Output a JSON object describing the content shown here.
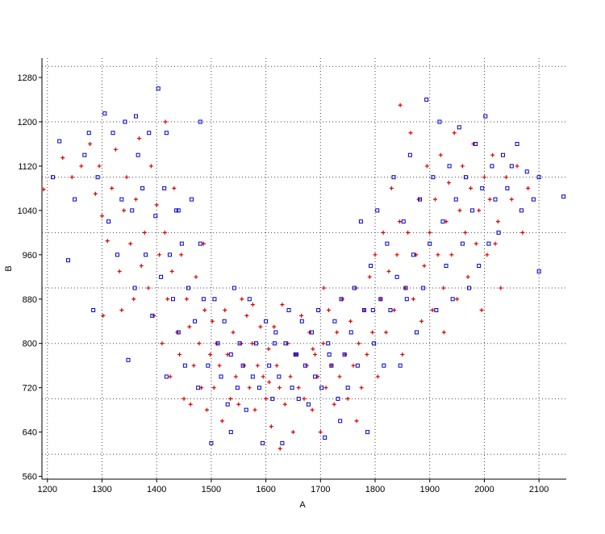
{
  "chart_data": {
    "type": "scatter",
    "title": "",
    "xlabel": "A",
    "ylabel": "B",
    "xlim": [
      1190,
      2150
    ],
    "ylim": [
      555,
      1315
    ],
    "x_ticks": [
      1200,
      1300,
      1400,
      1500,
      1600,
      1700,
      1800,
      1900,
      2000,
      2100
    ],
    "y_ticks": [
      560,
      640,
      720,
      800,
      880,
      960,
      1040,
      1120,
      1200,
      1280
    ],
    "x_grid": [
      1200,
      1300,
      1400,
      1500,
      1600,
      1700,
      1800,
      1900,
      2000,
      2100
    ],
    "y_grid": [
      600,
      700,
      800,
      900,
      1000,
      1100,
      1200,
      1300
    ],
    "grid": true,
    "legend": "none",
    "series": [
      {
        "marker": "plus",
        "color": "#dd0000",
        "points": [
          [
            1193,
            1078
          ],
          [
            1228,
            1135
          ],
          [
            1245,
            1100
          ],
          [
            1262,
            1120
          ],
          [
            1278,
            1160
          ],
          [
            1288,
            1070
          ],
          [
            1295,
            1120
          ],
          [
            1300,
            1030
          ],
          [
            1302,
            850
          ],
          [
            1310,
            985
          ],
          [
            1318,
            1080
          ],
          [
            1325,
            1150
          ],
          [
            1332,
            930
          ],
          [
            1340,
            1040
          ],
          [
            1345,
            1100
          ],
          [
            1352,
            980
          ],
          [
            1358,
            880
          ],
          [
            1362,
            1060
          ],
          [
            1368,
            1170
          ],
          [
            1372,
            940
          ],
          [
            1378,
            1000
          ],
          [
            1385,
            900
          ],
          [
            1390,
            1120
          ],
          [
            1395,
            850
          ],
          [
            1400,
            1050
          ],
          [
            1405,
            960
          ],
          [
            1410,
            800
          ],
          [
            1415,
            1000
          ],
          [
            1420,
            880
          ],
          [
            1425,
            740
          ],
          [
            1428,
            930
          ],
          [
            1432,
            1080
          ],
          [
            1438,
            820
          ],
          [
            1442,
            780
          ],
          [
            1445,
            960
          ],
          [
            1450,
            700
          ],
          [
            1455,
            880
          ],
          [
            1460,
            830
          ],
          [
            1462,
            690
          ],
          [
            1468,
            760
          ],
          [
            1472,
            920
          ],
          [
            1478,
            800
          ],
          [
            1482,
            720
          ],
          [
            1488,
            860
          ],
          [
            1492,
            680
          ],
          [
            1498,
            780
          ],
          [
            1502,
            840
          ],
          [
            1505,
            720
          ],
          [
            1510,
            800
          ],
          [
            1515,
            760
          ],
          [
            1520,
            660
          ],
          [
            1525,
            860
          ],
          [
            1530,
            780
          ],
          [
            1535,
            700
          ],
          [
            1540,
            820
          ],
          [
            1545,
            740
          ],
          [
            1550,
            690
          ],
          [
            1555,
            800
          ],
          [
            1560,
            760
          ],
          [
            1565,
            850
          ],
          [
            1570,
            720
          ],
          [
            1575,
            800
          ],
          [
            1580,
            680
          ],
          [
            1585,
            760
          ],
          [
            1590,
            830
          ],
          [
            1595,
            740
          ],
          [
            1600,
            700
          ],
          [
            1605,
            790
          ],
          [
            1610,
            650
          ],
          [
            1615,
            830
          ],
          [
            1620,
            760
          ],
          [
            1625,
            720
          ],
          [
            1630,
            870
          ],
          [
            1635,
            690
          ],
          [
            1640,
            800
          ],
          [
            1645,
            740
          ],
          [
            1650,
            640
          ],
          [
            1655,
            780
          ],
          [
            1660,
            720
          ],
          [
            1665,
            850
          ],
          [
            1670,
            700
          ],
          [
            1675,
            760
          ],
          [
            1680,
            820
          ],
          [
            1685,
            680
          ],
          [
            1690,
            780
          ],
          [
            1695,
            740
          ],
          [
            1700,
            640
          ],
          [
            1705,
            800
          ],
          [
            1710,
            720
          ],
          [
            1715,
            860
          ],
          [
            1720,
            760
          ],
          [
            1725,
            690
          ],
          [
            1730,
            820
          ],
          [
            1735,
            740
          ],
          [
            1740,
            880
          ],
          [
            1745,
            780
          ],
          [
            1750,
            700
          ],
          [
            1755,
            840
          ],
          [
            1760,
            760
          ],
          [
            1765,
            900
          ],
          [
            1770,
            800
          ],
          [
            1775,
            720
          ],
          [
            1780,
            860
          ],
          [
            1785,
            780
          ],
          [
            1790,
            920
          ],
          [
            1795,
            820
          ],
          [
            1800,
            960
          ],
          [
            1805,
            740
          ],
          [
            1810,
            880
          ],
          [
            1815,
            1000
          ],
          [
            1820,
            820
          ],
          [
            1825,
            930
          ],
          [
            1830,
            1080
          ],
          [
            1835,
            860
          ],
          [
            1840,
            960
          ],
          [
            1845,
            1020
          ],
          [
            1850,
            780
          ],
          [
            1855,
            900
          ],
          [
            1860,
            1000
          ],
          [
            1865,
            1180
          ],
          [
            1870,
            880
          ],
          [
            1875,
            960
          ],
          [
            1880,
            1060
          ],
          [
            1885,
            840
          ],
          [
            1890,
            940
          ],
          [
            1895,
            1120
          ],
          [
            1900,
            1000
          ],
          [
            1905,
            860
          ],
          [
            1910,
            1060
          ],
          [
            1915,
            960
          ],
          [
            1920,
            1140
          ],
          [
            1925,
            900
          ],
          [
            1930,
            1020
          ],
          [
            1935,
            1090
          ],
          [
            1940,
            960
          ],
          [
            1945,
            1180
          ],
          [
            1950,
            880
          ],
          [
            1955,
            1040
          ],
          [
            1960,
            1120
          ],
          [
            1965,
            1000
          ],
          [
            1970,
            920
          ],
          [
            1975,
            1080
          ],
          [
            1980,
            1160
          ],
          [
            1985,
            980
          ],
          [
            1990,
            1040
          ],
          [
            1995,
            860
          ],
          [
            2000,
            1100
          ],
          [
            2005,
            960
          ],
          [
            2010,
            1060
          ],
          [
            2015,
            1140
          ],
          [
            2020,
            980
          ],
          [
            2025,
            1020
          ],
          [
            2030,
            900
          ],
          [
            2040,
            1100
          ],
          [
            2050,
            1060
          ],
          [
            2060,
            1120
          ],
          [
            2070,
            1000
          ],
          [
            2080,
            1080
          ],
          [
            1336,
            860
          ],
          [
            1416,
            1200
          ],
          [
            1486,
            980
          ],
          [
            1556,
            880
          ],
          [
            1626,
            610
          ],
          [
            1706,
            900
          ],
          [
            1766,
            660
          ],
          [
            1846,
            1230
          ],
          [
            1926,
            820
          ],
          [
            1606,
            730
          ],
          [
            1686,
            790
          ],
          [
            1576,
            870
          ]
        ]
      },
      {
        "marker": "square",
        "color": "#0000cc",
        "points": [
          [
            1210,
            1100
          ],
          [
            1222,
            1165
          ],
          [
            1238,
            950
          ],
          [
            1250,
            1060
          ],
          [
            1268,
            1140
          ],
          [
            1276,
            1180
          ],
          [
            1284,
            860
          ],
          [
            1292,
            1100
          ],
          [
            1305,
            1215
          ],
          [
            1312,
            1020
          ],
          [
            1320,
            1180
          ],
          [
            1328,
            960
          ],
          [
            1336,
            1060
          ],
          [
            1342,
            1200
          ],
          [
            1348,
            770
          ],
          [
            1355,
            1040
          ],
          [
            1360,
            900
          ],
          [
            1366,
            1140
          ],
          [
            1374,
            1080
          ],
          [
            1380,
            960
          ],
          [
            1386,
            1180
          ],
          [
            1392,
            850
          ],
          [
            1398,
            1030
          ],
          [
            1403,
            1260
          ],
          [
            1408,
            920
          ],
          [
            1414,
            1080
          ],
          [
            1418,
            740
          ],
          [
            1424,
            960
          ],
          [
            1430,
            880
          ],
          [
            1436,
            1040
          ],
          [
            1440,
            820
          ],
          [
            1446,
            980
          ],
          [
            1452,
            760
          ],
          [
            1458,
            900
          ],
          [
            1464,
            1060
          ],
          [
            1470,
            840
          ],
          [
            1476,
            720
          ],
          [
            1480,
            980
          ],
          [
            1486,
            880
          ],
          [
            1494,
            760
          ],
          [
            1500,
            620
          ],
          [
            1506,
            880
          ],
          [
            1512,
            800
          ],
          [
            1518,
            740
          ],
          [
            1524,
            840
          ],
          [
            1530,
            690
          ],
          [
            1536,
            780
          ],
          [
            1542,
            900
          ],
          [
            1548,
            720
          ],
          [
            1552,
            800
          ],
          [
            1558,
            760
          ],
          [
            1564,
            680
          ],
          [
            1570,
            880
          ],
          [
            1576,
            740
          ],
          [
            1582,
            800
          ],
          [
            1588,
            720
          ],
          [
            1594,
            620
          ],
          [
            1600,
            840
          ],
          [
            1606,
            760
          ],
          [
            1612,
            700
          ],
          [
            1618,
            820
          ],
          [
            1624,
            740
          ],
          [
            1630,
            620
          ],
          [
            1636,
            800
          ],
          [
            1642,
            860
          ],
          [
            1648,
            720
          ],
          [
            1654,
            780
          ],
          [
            1660,
            700
          ],
          [
            1666,
            840
          ],
          [
            1672,
            760
          ],
          [
            1678,
            690
          ],
          [
            1684,
            820
          ],
          [
            1690,
            740
          ],
          [
            1696,
            860
          ],
          [
            1702,
            720
          ],
          [
            1708,
            630
          ],
          [
            1714,
            800
          ],
          [
            1720,
            760
          ],
          [
            1726,
            840
          ],
          [
            1732,
            700
          ],
          [
            1738,
            880
          ],
          [
            1744,
            780
          ],
          [
            1750,
            720
          ],
          [
            1756,
            820
          ],
          [
            1762,
            900
          ],
          [
            1768,
            760
          ],
          [
            1774,
            1020
          ],
          [
            1780,
            860
          ],
          [
            1786,
            640
          ],
          [
            1792,
            940
          ],
          [
            1798,
            800
          ],
          [
            1804,
            1040
          ],
          [
            1810,
            880
          ],
          [
            1816,
            760
          ],
          [
            1822,
            980
          ],
          [
            1828,
            860
          ],
          [
            1834,
            1100
          ],
          [
            1840,
            920
          ],
          [
            1846,
            760
          ],
          [
            1852,
            1020
          ],
          [
            1858,
            880
          ],
          [
            1864,
            1140
          ],
          [
            1870,
            960
          ],
          [
            1876,
            820
          ],
          [
            1882,
            1060
          ],
          [
            1888,
            900
          ],
          [
            1894,
            1240
          ],
          [
            1900,
            980
          ],
          [
            1906,
            1100
          ],
          [
            1912,
            860
          ],
          [
            1918,
            1200
          ],
          [
            1924,
            1020
          ],
          [
            1930,
            940
          ],
          [
            1936,
            1120
          ],
          [
            1942,
            880
          ],
          [
            1948,
            1060
          ],
          [
            1954,
            1190
          ],
          [
            1960,
            980
          ],
          [
            1966,
            1100
          ],
          [
            1972,
            900
          ],
          [
            1978,
            1040
          ],
          [
            1984,
            1160
          ],
          [
            1990,
            940
          ],
          [
            1996,
            1080
          ],
          [
            2002,
            1210
          ],
          [
            2008,
            980
          ],
          [
            2014,
            1120
          ],
          [
            2020,
            1060
          ],
          [
            2026,
            1000
          ],
          [
            2034,
            1140
          ],
          [
            2042,
            1080
          ],
          [
            2050,
            1120
          ],
          [
            2060,
            1160
          ],
          [
            2068,
            1040
          ],
          [
            2078,
            1110
          ],
          [
            2090,
            1060
          ],
          [
            2100,
            930
          ],
          [
            2100,
            1100
          ],
          [
            2145,
            1065
          ],
          [
            1440,
            1040
          ],
          [
            1480,
            1200
          ],
          [
            1362,
            1210
          ],
          [
            1418,
            1180
          ],
          [
            1536,
            640
          ],
          [
            1656,
            780
          ],
          [
            1716,
            780
          ],
          [
            1616,
            800
          ],
          [
            1736,
            660
          ],
          [
            1796,
            860
          ],
          [
            1856,
            900
          ]
        ]
      }
    ]
  }
}
